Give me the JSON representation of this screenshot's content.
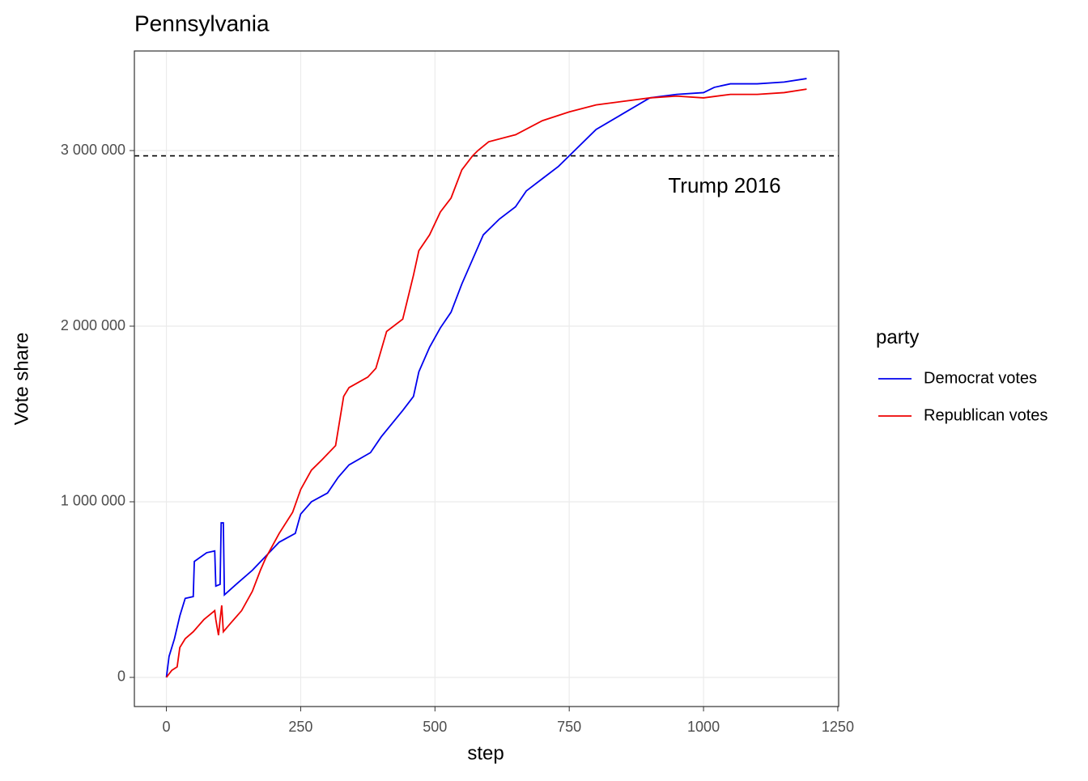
{
  "chart_data": {
    "type": "line",
    "title": "Pennsylvania",
    "xlabel": "step",
    "ylabel": "Vote share",
    "xlim": [
      -59.6,
      1251.6
    ],
    "xticks": [
      0,
      250,
      500,
      750,
      1000,
      1250
    ],
    "ylim": [
      -166000,
      3567000
    ],
    "yticks": [
      0,
      {
        "value": 1000000,
        "label": "1 000 000"
      },
      {
        "value": 2000000,
        "label": "2 000 000"
      },
      {
        "value": 3000000,
        "label": "3 000 000"
      }
    ],
    "grid": true,
    "legend_title": "party",
    "legend": "right",
    "hline": {
      "y": 2970000,
      "label": "Trump 2016"
    },
    "series": [
      {
        "name": "Democrat votes",
        "color": "#0000ee",
        "x": [
          0,
          5,
          10,
          15,
          25,
          35,
          50,
          52,
          75,
          90,
          92,
          100,
          102,
          106,
          108,
          130,
          160,
          185,
          210,
          240,
          250,
          270,
          300,
          320,
          340,
          380,
          400,
          440,
          460,
          470,
          490,
          510,
          530,
          550,
          570,
          590,
          620,
          650,
          670,
          700,
          730,
          760,
          800,
          850,
          900,
          950,
          1000,
          1020,
          1050,
          1100,
          1150,
          1192
        ],
        "values": [
          0,
          120000,
          170000,
          220000,
          350000,
          450000,
          460000,
          660000,
          710000,
          720000,
          520000,
          530000,
          880000,
          880000,
          470000,
          530000,
          610000,
          690000,
          770000,
          820000,
          930000,
          1000000,
          1050000,
          1140000,
          1210000,
          1280000,
          1370000,
          1520000,
          1600000,
          1740000,
          1880000,
          1990000,
          2080000,
          2240000,
          2380000,
          2520000,
          2610000,
          2680000,
          2770000,
          2840000,
          2910000,
          3000000,
          3120000,
          3210000,
          3300000,
          3320000,
          3330000,
          3360000,
          3380000,
          3380000,
          3390000,
          3410000
        ]
      },
      {
        "name": "Republican votes",
        "color": "#ee0000",
        "x": [
          0,
          5,
          10,
          20,
          25,
          35,
          50,
          70,
          90,
          92,
          97,
          100,
          103,
          106,
          120,
          140,
          160,
          175,
          185,
          210,
          235,
          250,
          270,
          290,
          315,
          330,
          340,
          375,
          390,
          410,
          440,
          460,
          470,
          490,
          510,
          530,
          550,
          570,
          580,
          600,
          650,
          700,
          750,
          800,
          850,
          900,
          950,
          1000,
          1050,
          1100,
          1150,
          1192
        ],
        "values": [
          0,
          20000,
          40000,
          60000,
          170000,
          220000,
          260000,
          330000,
          380000,
          330000,
          240000,
          330000,
          410000,
          260000,
          310000,
          380000,
          490000,
          610000,
          680000,
          820000,
          940000,
          1070000,
          1180000,
          1240000,
          1320000,
          1600000,
          1650000,
          1710000,
          1760000,
          1970000,
          2040000,
          2290000,
          2430000,
          2520000,
          2650000,
          2730000,
          2890000,
          2970000,
          3000000,
          3050000,
          3090000,
          3170000,
          3220000,
          3260000,
          3280000,
          3300000,
          3310000,
          3300000,
          3320000,
          3320000,
          3330000,
          3350000
        ]
      }
    ]
  }
}
